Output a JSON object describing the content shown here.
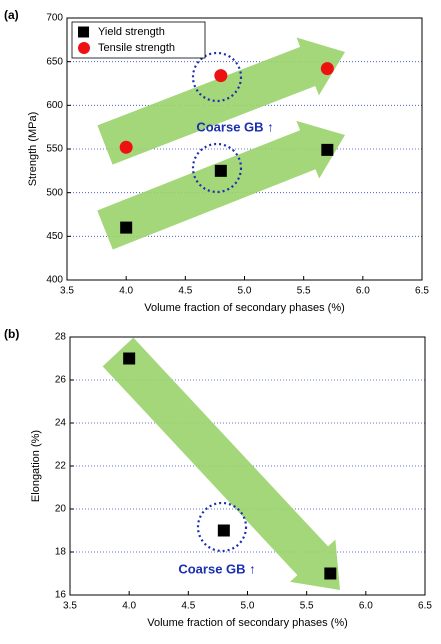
{
  "chart_data": [
    {
      "type": "scatter",
      "panel_label": "(a)",
      "xlabel": "Volume fraction of secondary phases (%)",
      "ylabel": "Strength (MPa)",
      "xlim": [
        3.5,
        6.5
      ],
      "ylim": [
        400,
        700
      ],
      "xticks": [
        3.5,
        {
          "value": 4,
          "label": "4.0"
        },
        4.5,
        {
          "value": 5,
          "label": "5.0"
        },
        5.5,
        {
          "value": 6,
          "label": "6.0"
        },
        6.5
      ],
      "yticks": [
        400,
        450,
        500,
        550,
        600,
        650,
        700
      ],
      "grid": true,
      "legend": "upper left",
      "annotation": "Coarse GB ↑",
      "series": [
        {
          "name": "Yield strength",
          "color": "#000000",
          "marker": "square",
          "x": [
            4.0,
            4.8,
            5.7
          ],
          "values": [
            460,
            525,
            549
          ]
        },
        {
          "name": "Tensile strength",
          "color": "#ee1111",
          "marker": "circle",
          "x": [
            4.0,
            4.8,
            5.7
          ],
          "values": [
            552,
            634,
            642
          ]
        }
      ]
    },
    {
      "type": "scatter",
      "panel_label": "(b)",
      "xlabel": "Volume fraction of secondary phases (%)",
      "ylabel": "Elongation (%)",
      "xlim": [
        3.5,
        6.5
      ],
      "ylim": [
        16,
        28
      ],
      "xticks": [
        3.5,
        {
          "value": 4,
          "label": "4.0"
        },
        4.5,
        {
          "value": 5,
          "label": "5.0"
        },
        5.5,
        {
          "value": 6,
          "label": "6.0"
        },
        6.5
      ],
      "yticks": [
        16,
        18,
        20,
        22,
        24,
        26,
        28
      ],
      "grid": true,
      "annotation": "Coarse GB ↑",
      "series": [
        {
          "color": "#000000",
          "marker": "square",
          "x": [
            4.0,
            4.8,
            5.7
          ],
          "values": [
            27,
            19,
            17
          ]
        }
      ]
    }
  ]
}
